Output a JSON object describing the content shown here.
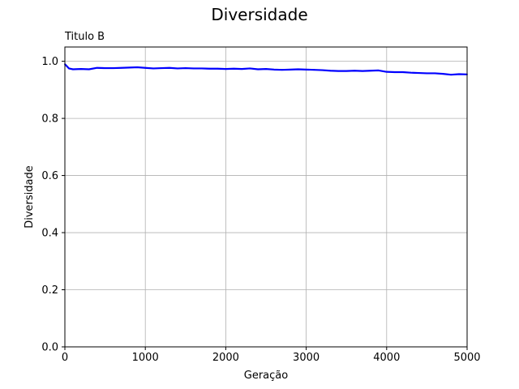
{
  "chart_data": {
    "type": "line",
    "title": "Diversidade",
    "subtitle": "Titulo B",
    "xlabel": "Geração",
    "ylabel": "Diversidade",
    "xlim": [
      0,
      5000
    ],
    "ylim": [
      0,
      1.05
    ],
    "xticks": [
      0,
      1000,
      2000,
      3000,
      4000,
      5000
    ],
    "yticks": [
      0.0,
      0.2,
      0.4,
      0.6,
      0.8,
      1.0
    ],
    "xtick_labels": [
      "0",
      "1000",
      "2000",
      "3000",
      "4000",
      "5000"
    ],
    "ytick_labels": [
      "0.0",
      "0.2",
      "0.4",
      "0.6",
      "0.8",
      "1.0"
    ],
    "grid": true,
    "series": [
      {
        "color": "#0000ff",
        "x": [
          0,
          50,
          100,
          200,
          300,
          400,
          500,
          600,
          700,
          800,
          900,
          1000,
          1100,
          1200,
          1300,
          1400,
          1500,
          1600,
          1700,
          1800,
          1900,
          2000,
          2100,
          2200,
          2300,
          2400,
          2500,
          2600,
          2700,
          2800,
          2900,
          3000,
          3100,
          3200,
          3300,
          3400,
          3500,
          3600,
          3700,
          3800,
          3900,
          4000,
          4100,
          4200,
          4300,
          4400,
          4500,
          4600,
          4700,
          4800,
          4900,
          5000
        ],
        "y": [
          0.99,
          0.975,
          0.972,
          0.973,
          0.972,
          0.977,
          0.976,
          0.976,
          0.977,
          0.978,
          0.979,
          0.977,
          0.975,
          0.976,
          0.977,
          0.975,
          0.976,
          0.975,
          0.975,
          0.974,
          0.974,
          0.973,
          0.974,
          0.973,
          0.975,
          0.972,
          0.973,
          0.971,
          0.97,
          0.971,
          0.972,
          0.971,
          0.97,
          0.969,
          0.967,
          0.966,
          0.966,
          0.967,
          0.966,
          0.967,
          0.968,
          0.963,
          0.962,
          0.962,
          0.96,
          0.959,
          0.958,
          0.958,
          0.956,
          0.953,
          0.955,
          0.954
        ]
      }
    ]
  }
}
